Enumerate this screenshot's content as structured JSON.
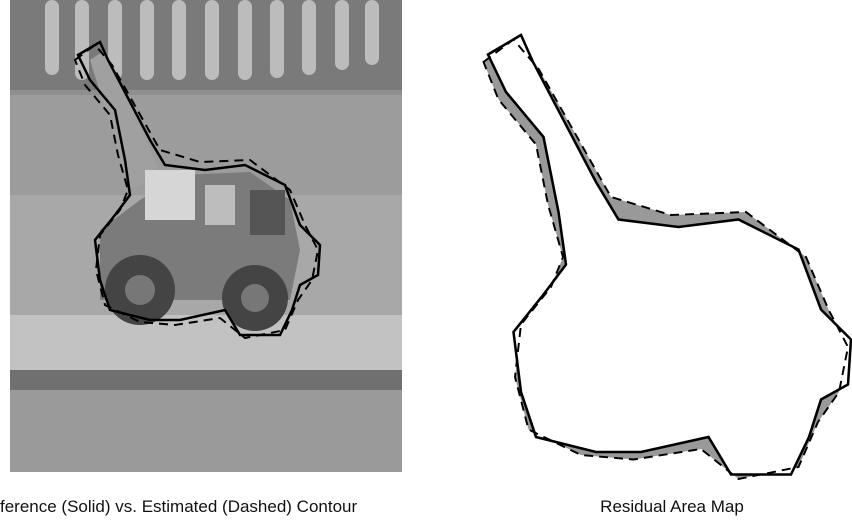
{
  "figure": {
    "panels": [
      {
        "caption": "ference (Solid) vs. Estimated (Dashed) Contour"
      },
      {
        "caption": "Residual Area Map"
      }
    ]
  }
}
